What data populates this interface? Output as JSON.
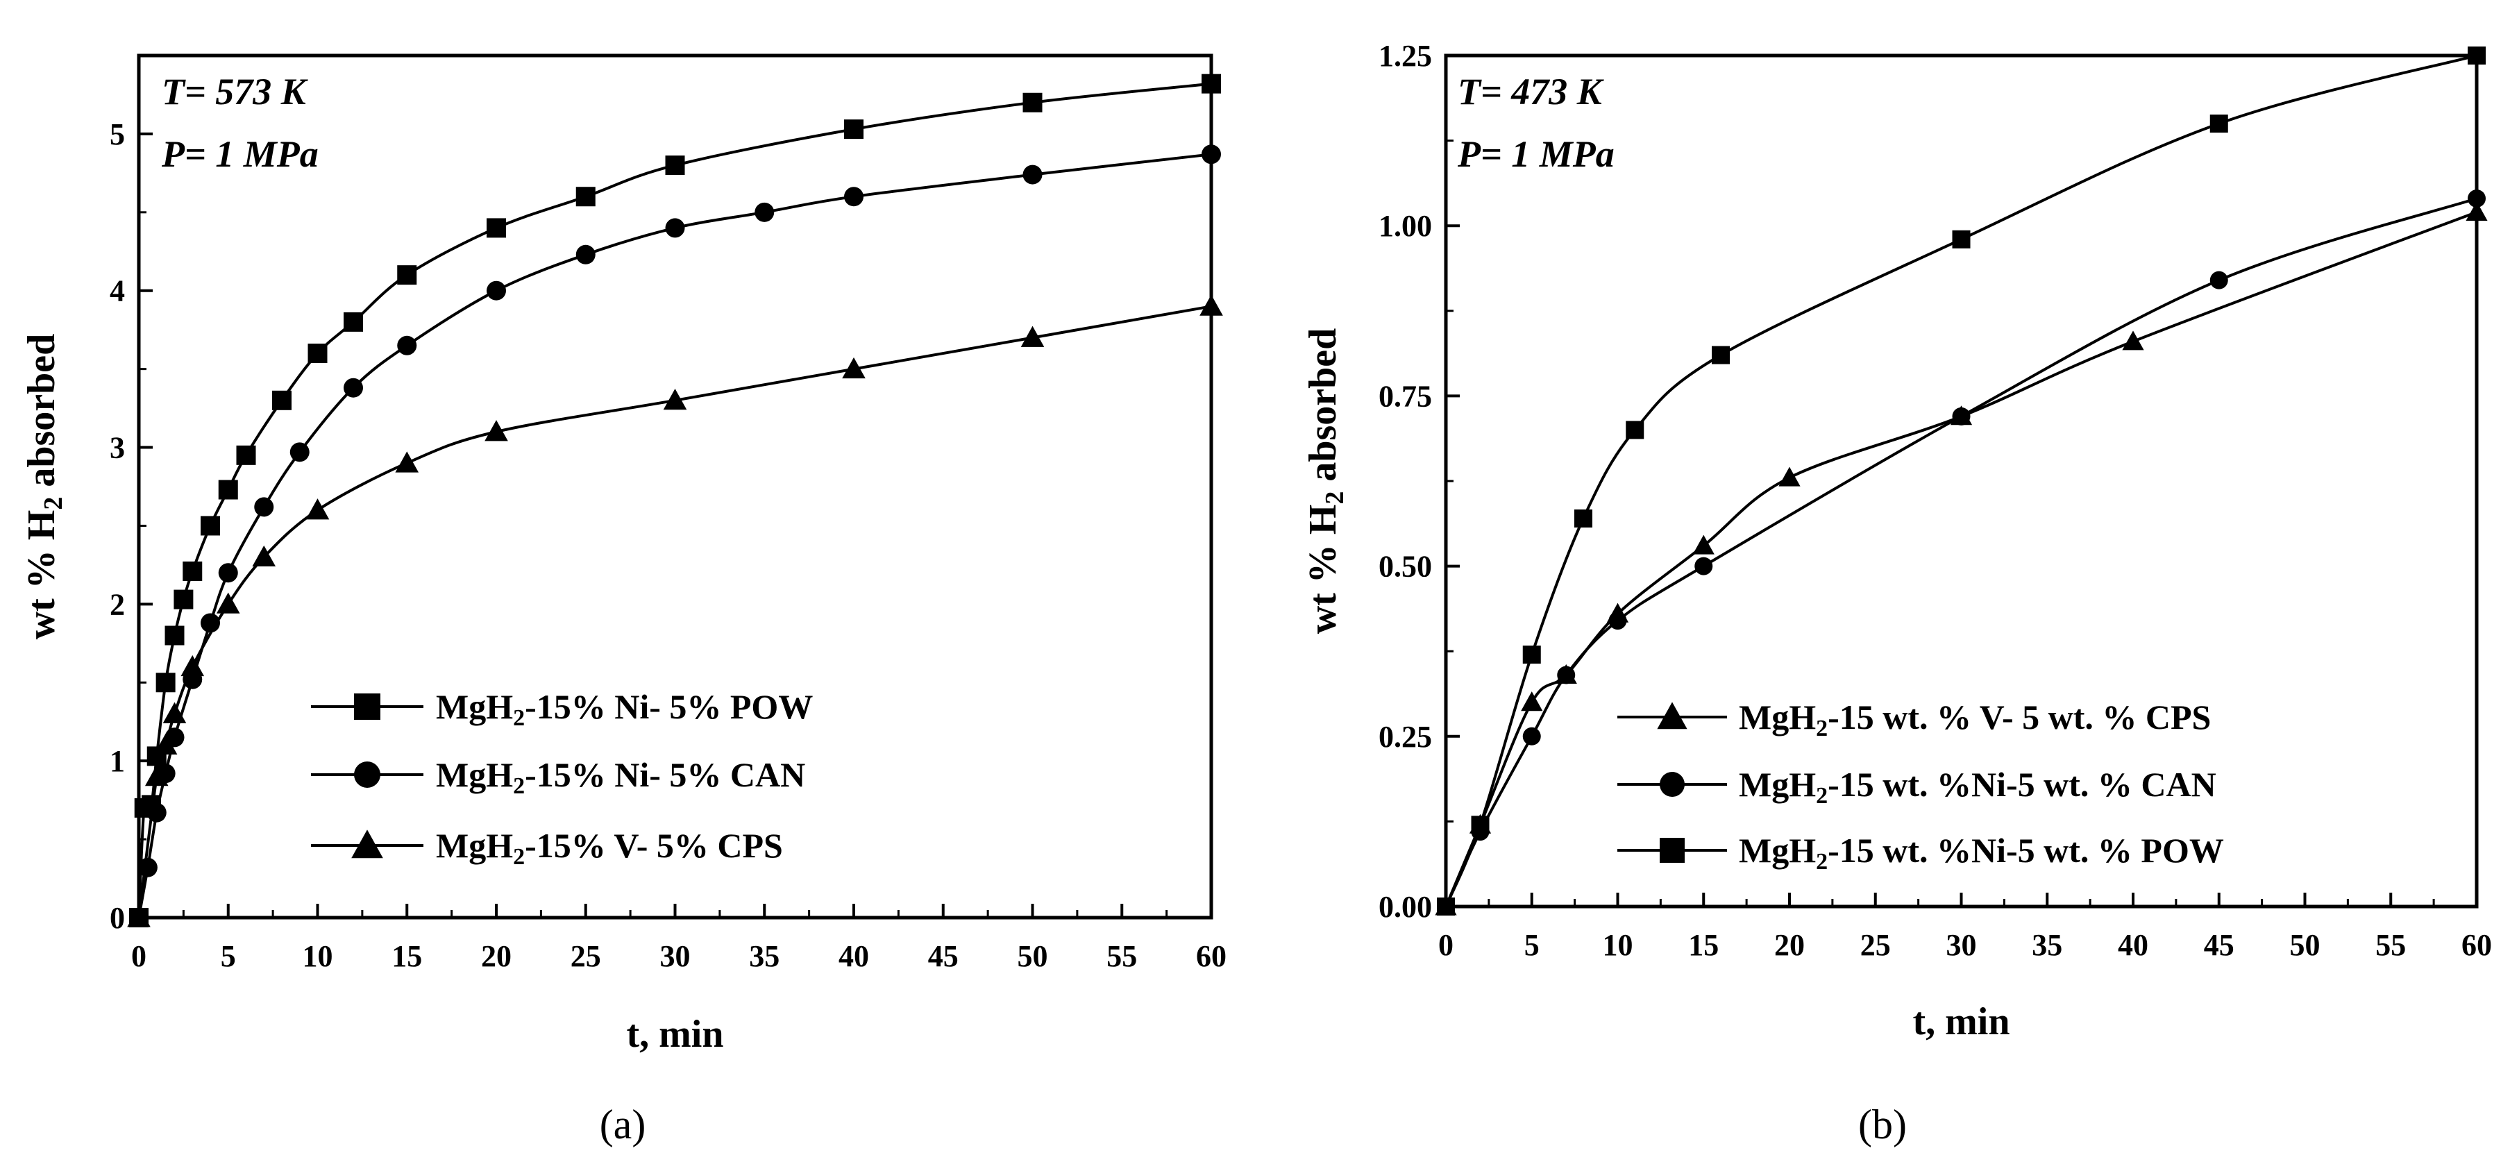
{
  "chart_data": [
    {
      "type": "line",
      "panel_label": "(a)",
      "conditions": [
        "T= 573 K",
        "P= 1 MPa"
      ],
      "xlabel": "t, min",
      "ylabel_parts": [
        "wt % H",
        "2",
        " absorbed"
      ],
      "xlim": [
        0,
        60
      ],
      "ylim": [
        0,
        5.5
      ],
      "xticks": [
        "0",
        "5",
        "10",
        "15",
        "20",
        "25",
        "30",
        "35",
        "40",
        "45",
        "50",
        "55",
        "60"
      ],
      "yticks": [
        "0",
        "1",
        "2",
        "3",
        "4",
        "5"
      ],
      "legend_location": "center-right",
      "series": [
        {
          "name": "MgH2-15% Ni- 5% POW",
          "name_parts": [
            "MgH",
            "2",
            "-15% Ni- 5% POW"
          ],
          "marker": "square",
          "x": [
            0,
            0.3,
            0.7,
            1,
            1.5,
            2,
            2.5,
            3,
            4,
            5,
            6,
            8,
            10,
            12,
            15,
            20,
            25,
            30,
            40,
            50,
            60
          ],
          "y": [
            0,
            0.7,
            0.72,
            1.03,
            1.5,
            1.8,
            2.03,
            2.21,
            2.5,
            2.73,
            2.95,
            3.3,
            3.6,
            3.8,
            4.1,
            4.4,
            4.6,
            4.8,
            5.03,
            5.2,
            5.32
          ]
        },
        {
          "name": "MgH2-15% Ni- 5% CAN",
          "name_parts": [
            "MgH",
            "2",
            "-15% Ni- 5% CAN"
          ],
          "marker": "circle",
          "x": [
            0,
            0.5,
            1,
            1.5,
            2,
            3,
            4,
            5,
            7,
            9,
            12,
            15,
            20,
            25,
            30,
            35,
            40,
            50,
            60
          ],
          "y": [
            0,
            0.32,
            0.67,
            0.92,
            1.15,
            1.52,
            1.88,
            2.2,
            2.62,
            2.97,
            3.38,
            3.65,
            4.0,
            4.23,
            4.4,
            4.5,
            4.6,
            4.74,
            4.87
          ]
        },
        {
          "name": "MgH2-15% V- 5% CPS",
          "name_parts": [
            "MgH",
            "2",
            "-15% V- 5% CPS"
          ],
          "marker": "triangle",
          "x": [
            0,
            1,
            1.5,
            2,
            3,
            5,
            7,
            10,
            15,
            20,
            30,
            40,
            50,
            60
          ],
          "y": [
            0,
            0.9,
            1.1,
            1.3,
            1.6,
            2.0,
            2.3,
            2.6,
            2.9,
            3.1,
            3.3,
            3.5,
            3.7,
            3.9
          ]
        }
      ]
    },
    {
      "type": "line",
      "panel_label": "(b)",
      "conditions": [
        "T= 473 K",
        "P= 1 MPa"
      ],
      "xlabel": "t, min",
      "ylabel_parts": [
        "wt % H",
        "2",
        " absorbed"
      ],
      "xlim": [
        0,
        60
      ],
      "ylim": [
        0,
        1.25
      ],
      "xticks": [
        "0",
        "5",
        "10",
        "15",
        "20",
        "25",
        "30",
        "35",
        "40",
        "45",
        "50",
        "55",
        "60"
      ],
      "yticks": [
        "0.00",
        "0.25",
        "0.50",
        "0.75",
        "1.00",
        "1.25"
      ],
      "legend_location": "bottom-right",
      "series": [
        {
          "name": "MgH2-15 wt. % V- 5 wt. % CPS",
          "name_parts": [
            "MgH",
            "2",
            "-15 wt. % V- 5 wt. % CPS"
          ],
          "marker": "triangle",
          "x": [
            0,
            2,
            5,
            7,
            10,
            15,
            20,
            30,
            40,
            60
          ],
          "y": [
            0,
            0.12,
            0.3,
            0.34,
            0.43,
            0.53,
            0.63,
            0.72,
            0.83,
            1.02
          ]
        },
        {
          "name": "MgH2-15 wt. %Ni-5 wt. % CAN",
          "name_parts": [
            "MgH",
            "2",
            "-15 wt. %Ni-5 wt. % CAN"
          ],
          "marker": "circle",
          "x": [
            0,
            2,
            5,
            7,
            10,
            15,
            30,
            45,
            60
          ],
          "y": [
            0,
            0.11,
            0.25,
            0.34,
            0.42,
            0.5,
            0.72,
            0.92,
            1.04
          ]
        },
        {
          "name": "MgH2-15 wt. %Ni-5 wt. % POW",
          "name_parts": [
            "MgH",
            "2",
            "-15 wt. %Ni-5 wt. % POW"
          ],
          "marker": "square",
          "x": [
            0,
            2,
            5,
            8,
            11,
            16,
            30,
            45,
            60
          ],
          "y": [
            0,
            0.12,
            0.37,
            0.57,
            0.7,
            0.81,
            0.98,
            1.15,
            1.25
          ]
        }
      ]
    }
  ]
}
